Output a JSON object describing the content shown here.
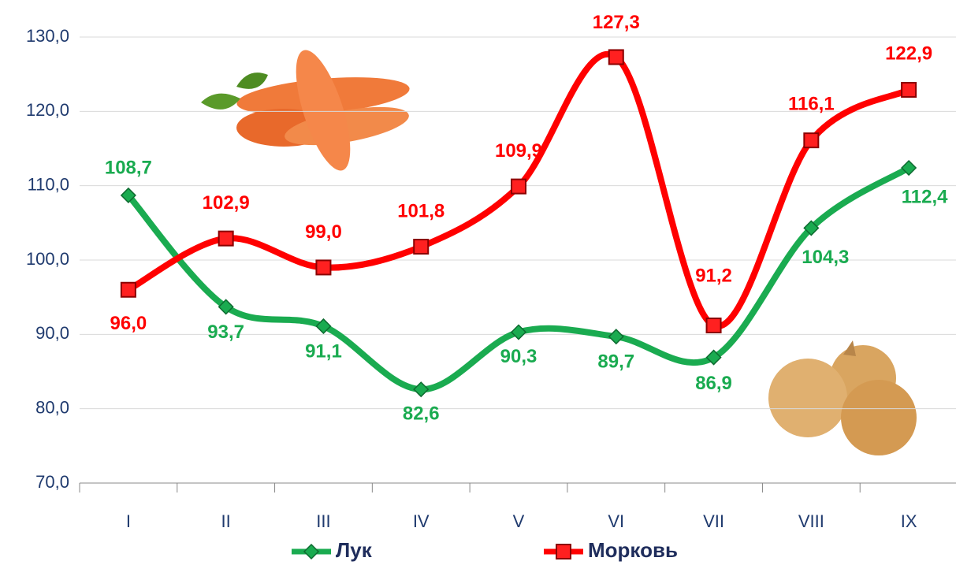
{
  "chart_data": {
    "type": "line",
    "categories": [
      "I",
      "II",
      "III",
      "IV",
      "V",
      "VI",
      "VII",
      "VIII",
      "IX"
    ],
    "series": [
      {
        "name": "Лук",
        "color": "#1aab50",
        "values": [
          108.7,
          93.7,
          91.1,
          82.6,
          90.3,
          89.7,
          86.9,
          104.3,
          112.4
        ],
        "value_labels": [
          "108,7",
          "93,7",
          "91,1",
          "82,6",
          "90,3",
          "89,7",
          "86,9",
          "104,3",
          "112,4"
        ]
      },
      {
        "name": "Морковь",
        "color": "#ff0000",
        "values": [
          96.0,
          102.9,
          99.0,
          101.8,
          109.9,
          127.3,
          91.2,
          116.1,
          122.9
        ],
        "value_labels": [
          "96,0",
          "102,9",
          "99,0",
          "101,8",
          "109,9",
          "127,3",
          "91,2",
          "116,1",
          "122,9"
        ]
      }
    ],
    "ylim": [
      70,
      130
    ],
    "yticks": [
      {
        "value": 70,
        "label": "70,0"
      },
      {
        "value": 80,
        "label": "80,0"
      },
      {
        "value": 90,
        "label": "90,0"
      },
      {
        "value": 100,
        "label": "100,0"
      },
      {
        "value": 110,
        "label": "110,0"
      },
      {
        "value": 120,
        "label": "120,0"
      },
      {
        "value": 130,
        "label": "130,0"
      }
    ],
    "grid": true,
    "legend": "bottom"
  }
}
